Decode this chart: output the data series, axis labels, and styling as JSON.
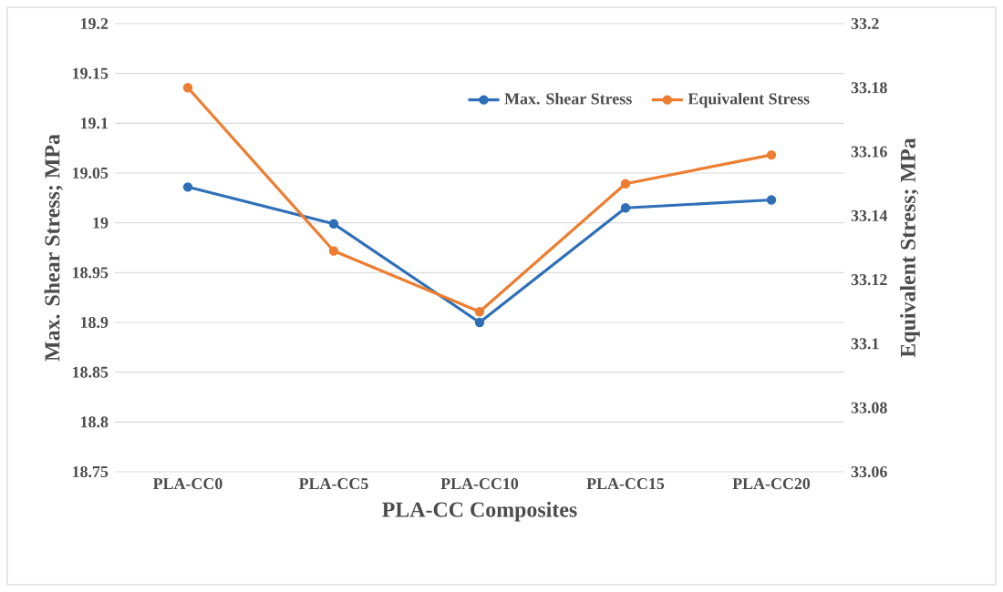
{
  "chart_data": {
    "type": "line",
    "xlabel": "PLA-CC Composites",
    "ylabel": "Max. Shear Stress; MPa",
    "y2label": "Equivalent Stress; MPa",
    "categories": [
      "PLA-CC0",
      "PLA-CC5",
      "PLA-CC10",
      "PLA-CC15",
      "PLA-CC20"
    ],
    "series": [
      {
        "name": "Max. Shear Stress",
        "color": "#2e6fb7",
        "values": [
          19.036,
          18.999,
          18.9,
          19.015,
          19.023
        ]
      },
      {
        "name": "Equivalent Stress",
        "color": "#ed7d31",
        "axis": "y2",
        "values": [
          33.18,
          33.129,
          33.11,
          33.15,
          33.159
        ]
      }
    ],
    "ylim": [
      18.75,
      19.2
    ],
    "yticks": [
      18.75,
      18.8,
      18.85,
      18.9,
      18.95,
      19,
      19.05,
      19.1,
      19.15,
      19.2
    ],
    "y2lim": [
      33.06,
      33.2
    ],
    "y2ticks": [
      33.06,
      33.08,
      33.1,
      33.12,
      33.14,
      33.16,
      33.18,
      33.2
    ],
    "grid": "y",
    "legend": "top right",
    "marker": "circle",
    "line_style": "solid"
  }
}
